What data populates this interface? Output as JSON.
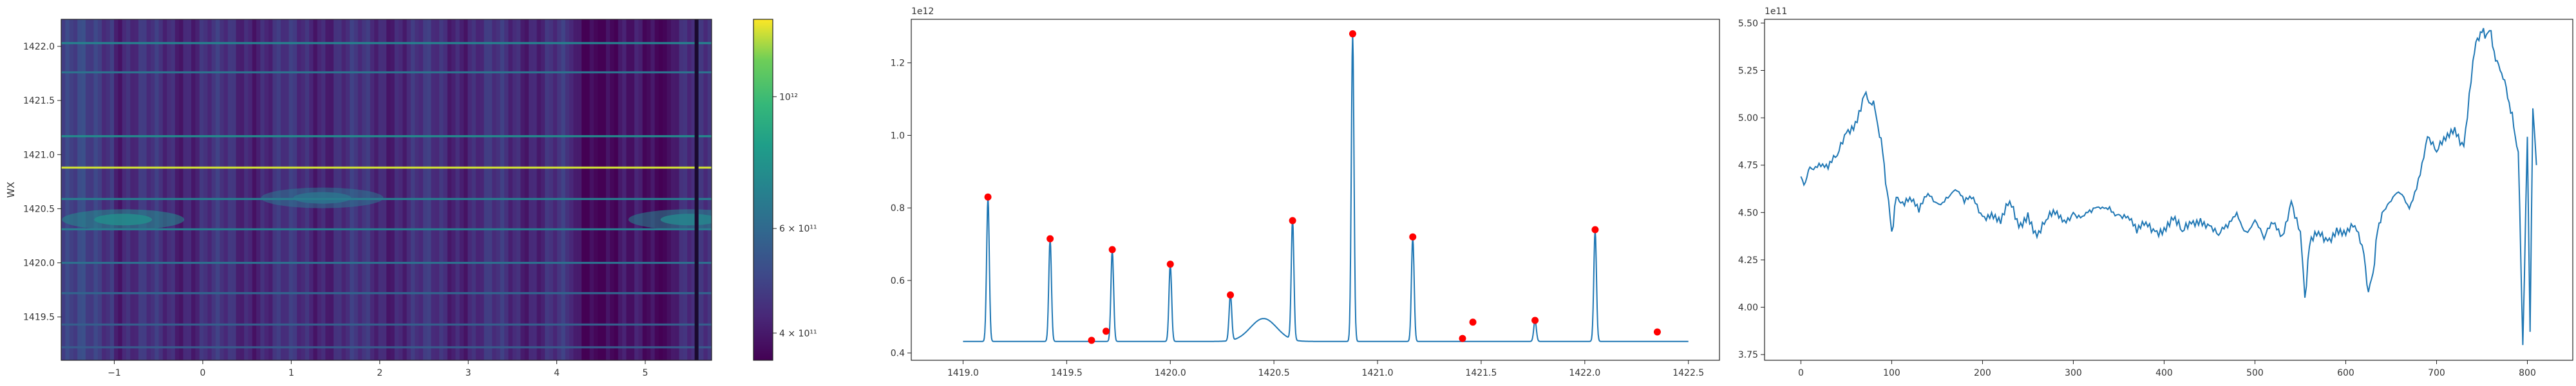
{
  "chart_data": [
    {
      "type": "heatmap",
      "ylabel": "WX",
      "xlabel": "",
      "xlim": [
        -1.6,
        5.75
      ],
      "ylim": [
        1419.1,
        1422.25
      ],
      "x_ticks": [
        "−1",
        "0",
        "1",
        "2",
        "3",
        "4",
        "5"
      ],
      "x_tick_values": [
        -1,
        0,
        1,
        2,
        3,
        4,
        5
      ],
      "y_ticks": [
        "1419.5",
        "1420.0",
        "1420.5",
        "1421.0",
        "1421.5",
        "1422.0"
      ],
      "y_tick_values": [
        1419.5,
        1420.0,
        1420.5,
        1421.0,
        1421.5,
        1422.0
      ],
      "colormap": "viridis",
      "colorbar_ticks": [
        "4 × 10¹¹",
        "6 × 10¹¹",
        "10¹²"
      ],
      "colorbar_tick_values": [
        400000000000.0,
        600000000000.0,
        1000000000000.0
      ],
      "colorbar_range": [
        360000000000.0,
        1350000000000.0
      ],
      "horizontal_lines": [
        {
          "y": 1419.22,
          "value": 550000000000.0
        },
        {
          "y": 1419.43,
          "value": 560000000000.0
        },
        {
          "y": 1419.72,
          "value": 580000000000.0
        },
        {
          "y": 1420.0,
          "value": 620000000000.0
        },
        {
          "y": 1420.31,
          "value": 670000000000.0
        },
        {
          "y": 1420.59,
          "value": 680000000000.0
        },
        {
          "y": 1420.88,
          "value": 1280000000000.0
        },
        {
          "y": 1421.17,
          "value": 740000000000.0
        },
        {
          "y": 1421.76,
          "value": 630000000000.0
        },
        {
          "y": 1422.03,
          "value": 700000000000.0
        }
      ],
      "blobs": [
        {
          "x": -0.9,
          "y": 1420.4,
          "value": 750000000000.0
        },
        {
          "x": 1.35,
          "y": 1420.6,
          "value": 640000000000.0
        },
        {
          "x": 5.5,
          "y": 1420.4,
          "value": 720000000000.0
        }
      ],
      "vertical_lines": [
        {
          "x": 5.58
        }
      ]
    },
    {
      "type": "line",
      "xlim": [
        1418.75,
        1422.65
      ],
      "ylim": [
        0.38,
        1.32
      ],
      "y_multiplier": "1e12",
      "x_ticks": [
        "1419.0",
        "1419.5",
        "1420.0",
        "1420.5",
        "1421.0",
        "1421.5",
        "1422.0",
        "1422.5"
      ],
      "x_tick_values": [
        1419.0,
        1419.5,
        1420.0,
        1420.5,
        1421.0,
        1421.5,
        1422.0,
        1422.5
      ],
      "y_ticks": [
        "0.4",
        "0.6",
        "0.8",
        "1.0",
        "1.2"
      ],
      "y_tick_values": [
        0.4,
        0.6,
        0.8,
        1.0,
        1.2
      ],
      "baseline": 0.432,
      "peaks": [
        {
          "x": 1419.12,
          "y": 0.83
        },
        {
          "x": 1419.42,
          "y": 0.715
        },
        {
          "x": 1419.72,
          "y": 0.685
        },
        {
          "x": 1420.0,
          "y": 0.645
        },
        {
          "x": 1420.29,
          "y": 0.56
        },
        {
          "x": 1420.59,
          "y": 0.765
        },
        {
          "x": 1420.88,
          "y": 1.28
        },
        {
          "x": 1421.17,
          "y": 0.72
        },
        {
          "x": 1421.76,
          "y": 0.49
        },
        {
          "x": 1422.05,
          "y": 0.74
        }
      ],
      "markers": [
        {
          "x": 1419.12,
          "y": 0.83
        },
        {
          "x": 1419.42,
          "y": 0.715
        },
        {
          "x": 1419.62,
          "y": 0.435
        },
        {
          "x": 1419.69,
          "y": 0.46
        },
        {
          "x": 1419.72,
          "y": 0.685
        },
        {
          "x": 1420.0,
          "y": 0.645
        },
        {
          "x": 1420.29,
          "y": 0.56
        },
        {
          "x": 1420.59,
          "y": 0.765
        },
        {
          "x": 1420.88,
          "y": 1.28
        },
        {
          "x": 1421.17,
          "y": 0.72
        },
        {
          "x": 1421.41,
          "y": 0.44
        },
        {
          "x": 1421.46,
          "y": 0.485
        },
        {
          "x": 1421.76,
          "y": 0.49
        },
        {
          "x": 1422.05,
          "y": 0.74
        },
        {
          "x": 1422.35,
          "y": 0.458
        }
      ],
      "bump": {
        "x": 1420.45,
        "y": 0.495
      },
      "line_color": "#1f77b4",
      "marker_color": "#ff0000"
    },
    {
      "type": "line",
      "xlim": [
        -40,
        850
      ],
      "ylim": [
        3.72,
        5.52
      ],
      "y_multiplier": "1e11",
      "x_ticks": [
        "0",
        "100",
        "200",
        "300",
        "400",
        "500",
        "600",
        "700",
        "800"
      ],
      "x_tick_values": [
        0,
        100,
        200,
        300,
        400,
        500,
        600,
        700,
        800
      ],
      "y_ticks": [
        "3.75",
        "4.00",
        "4.25",
        "4.50",
        "4.75",
        "5.00",
        "5.25",
        "5.50"
      ],
      "y_tick_values": [
        3.75,
        4.0,
        4.25,
        4.5,
        4.75,
        5.0,
        5.25,
        5.5
      ],
      "x": [
        0,
        5,
        10,
        20,
        30,
        40,
        50,
        60,
        70,
        75,
        80,
        85,
        90,
        95,
        100,
        105,
        110,
        120,
        130,
        140,
        150,
        160,
        170,
        180,
        190,
        200,
        210,
        220,
        230,
        240,
        250,
        260,
        270,
        280,
        290,
        300,
        310,
        320,
        330,
        340,
        350,
        360,
        370,
        380,
        390,
        400,
        410,
        420,
        430,
        440,
        450,
        460,
        470,
        480,
        490,
        500,
        510,
        520,
        530,
        540,
        550,
        555,
        560,
        570,
        580,
        590,
        600,
        610,
        620,
        625,
        630,
        635,
        640,
        650,
        660,
        670,
        680,
        690,
        700,
        710,
        720,
        730,
        740,
        745,
        750,
        755,
        760,
        765,
        770,
        775,
        780,
        785,
        790,
        795,
        800,
        803,
        806,
        810
      ],
      "y": [
        4.69,
        4.66,
        4.74,
        4.76,
        4.73,
        4.8,
        4.92,
        4.98,
        5.12,
        5.08,
        5.09,
        4.95,
        4.82,
        4.61,
        4.4,
        4.58,
        4.55,
        4.58,
        4.5,
        4.6,
        4.55,
        4.58,
        4.62,
        4.55,
        4.58,
        4.48,
        4.5,
        4.44,
        4.56,
        4.42,
        4.5,
        4.37,
        4.46,
        4.49,
        4.46,
        4.5,
        4.48,
        4.5,
        4.52,
        4.53,
        4.49,
        4.48,
        4.39,
        4.45,
        4.4,
        4.42,
        4.46,
        4.4,
        4.44,
        4.47,
        4.43,
        4.38,
        4.42,
        4.5,
        4.4,
        4.46,
        4.36,
        4.44,
        4.38,
        4.56,
        4.4,
        4.05,
        4.32,
        4.4,
        4.35,
        4.42,
        4.38,
        4.43,
        4.28,
        4.08,
        4.18,
        4.4,
        4.5,
        4.56,
        4.6,
        4.52,
        4.68,
        4.9,
        4.82,
        4.88,
        4.95,
        4.85,
        5.3,
        5.42,
        5.45,
        5.44,
        5.46,
        5.3,
        5.25,
        5.2,
        5.08,
        4.95,
        4.82,
        3.8,
        4.9,
        3.87,
        5.05,
        4.75
      ],
      "line_color": "#1f77b4"
    }
  ]
}
